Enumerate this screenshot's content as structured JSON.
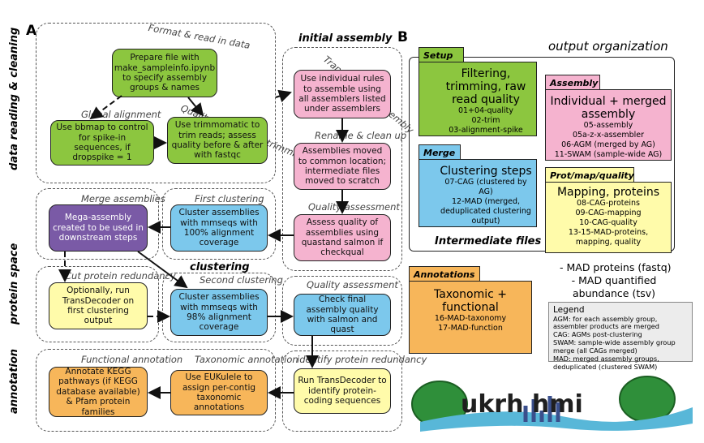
{
  "panels": {
    "a": "A",
    "b": "B"
  },
  "side_labels": {
    "data_reading": "data reading & cleaning",
    "protein_space": "protein space",
    "annotation": "annotation"
  },
  "groups": {
    "format_read": "Format & read in data",
    "global_alignment": "Global alignment",
    "quality_control": "Quality control and trimming",
    "initial_assembly": "initial assembly",
    "transcriptome_assembly": "Transcriptome assembly",
    "rename_clean": "Rename & clean up",
    "quality_assessment_1": "Quality assessment",
    "merge_assemblies": "Merge assemblies",
    "first_clustering": "First clustering",
    "clustering": "clustering",
    "second_clustering": "Second clustering",
    "quality_assessment_2": "Quality assessment",
    "cut_protein_redundancy": "Cut protein redundancy",
    "identify_protein_redundancy": "identify protein redundancy",
    "functional_annotation": "Functional annotation",
    "taxonomic_annotation": "Taxonomic annotation"
  },
  "nodes": {
    "prepare": "Prepare file with make_sampleinfo.ipynb to specify assembly groups & names",
    "bbmap": "Use bbmap to control for spike-in sequences, if dropspike = 1",
    "trimmomatic": "Use trimmomatic to trim reads; assess quality before & after with fastqc",
    "individual_rules": "Use individual rules to assemble using all assemblers listed under assemblers",
    "moved": "Assemblies moved to common location; intermediate files moved to scratch",
    "assess_quast": "Assess quality of assemblies using quastand salmon if checkqual",
    "first_cluster": "Cluster assemblies with mmseqs with 100% alignment coverage",
    "mega": "Mega-assembly created to be used in downstream steps",
    "transdecoder_opt": "Optionally, run TransDecoder on first clustering output",
    "second_cluster": "Cluster assemblies with mmseqs with 98% alignment coverage",
    "check_final": "Check final assembly quality with salmon and quast",
    "transdecoder_run": "Run TransDecoder to identify protein-coding sequences",
    "eukulele": "Use EUKulele to assign per-contig taxonomic annotations",
    "kegg": "Annotate KEGG pathways (if KEGG database available) & Pfam protein families"
  },
  "output": {
    "title": "output organization",
    "intermediate_files": "Intermediate files",
    "setup": {
      "tab": "Setup",
      "title": "Filtering, trimming, raw read quality",
      "lines": [
        "01+04-quality",
        "02-trim",
        "03-alignment-spike"
      ]
    },
    "assembly": {
      "tab": "Assembly",
      "title": "Individual + merged assembly",
      "lines": [
        "05-assembly",
        "05a-z-x-assembler",
        "06-AGM (merged by AG)",
        "11-SWAM (sample-wide AG)"
      ]
    },
    "merge": {
      "tab": "Merge",
      "title": "Clustering steps",
      "lines": [
        "07-CAG (clustered by AG)",
        "12-MAD (merged, deduplicated clustering output)"
      ]
    },
    "protmap": {
      "tab": "Prot/map/quality",
      "title": "Mapping, proteins",
      "lines": [
        "08-CAG-proteins",
        "09-CAG-mapping",
        "10-CAG-quality",
        "13-15-MAD-proteins, mapping, quality"
      ]
    },
    "annotations": {
      "tab": "Annotations",
      "title": "Taxonomic + functional",
      "lines": [
        "16-MAD-taxonomy",
        "17-MAD-function"
      ]
    },
    "mad_outputs": [
      "- MAD proteins (fastq)",
      "- MAD quantified abundance (tsv)"
    ]
  },
  "legend": {
    "title": "Legend",
    "items": [
      "AGM: for each assembly group, assembler products are merged",
      "CAG: AGMs post-clustering",
      "SWAM: sample-wide assembly group merge (all CAGs merged)",
      "MAD: merged assembly groups, deduplicated (clustered SWAM)"
    ]
  },
  "logo": {
    "text": "ukrh  hmi"
  },
  "colors": {
    "green": "#8cc63f",
    "pink": "#f5b3cf",
    "blue": "#7cc8ec",
    "purple": "#7a5aa6",
    "yellow": "#fffbaa",
    "orange": "#f7b65a"
  }
}
